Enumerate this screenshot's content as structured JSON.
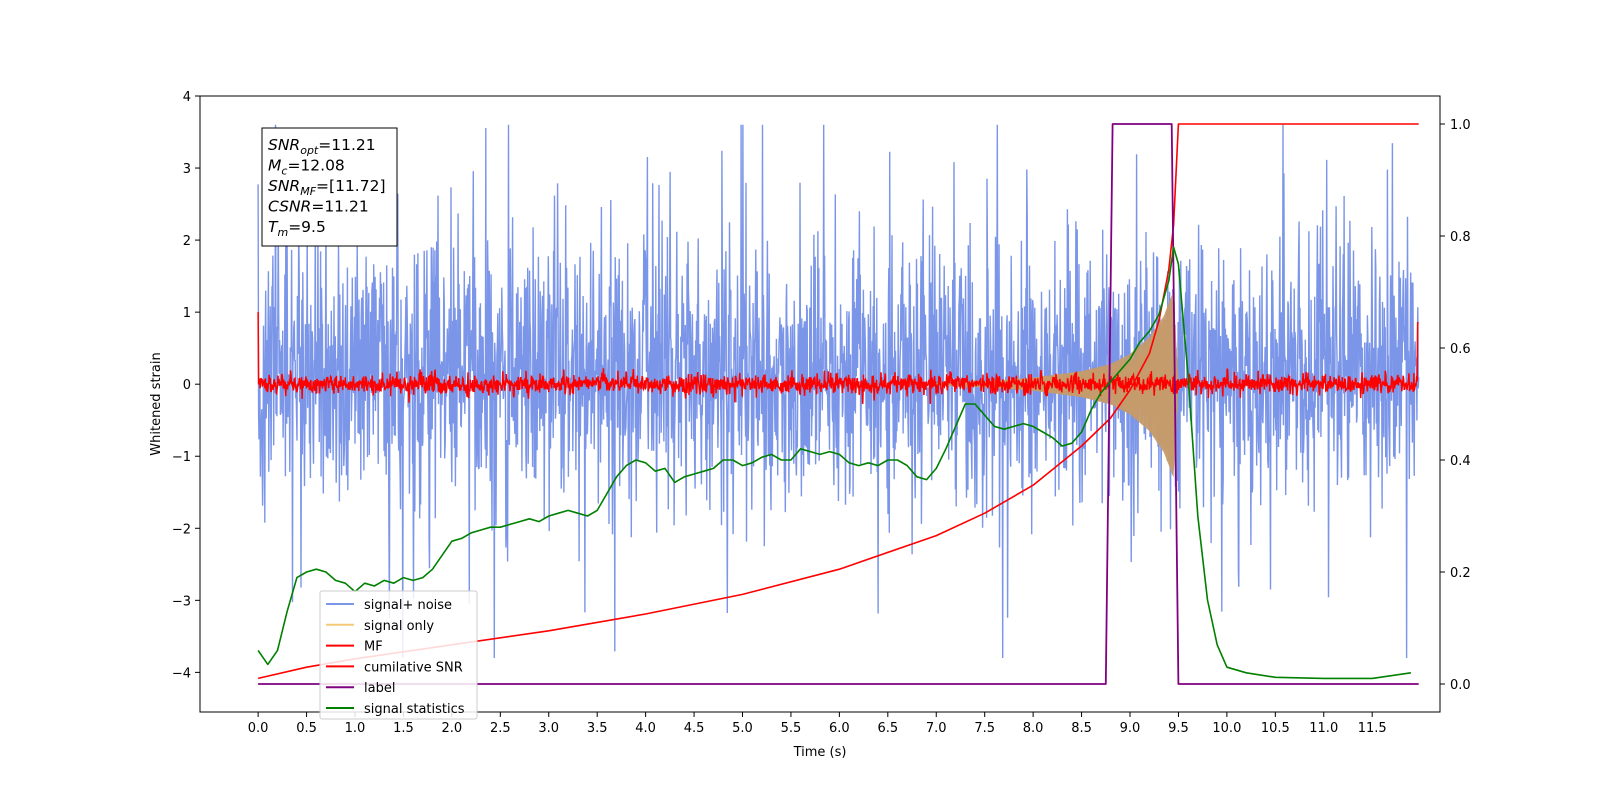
{
  "chart_data": {
    "type": "line",
    "xlabel": "Time (s)",
    "ylabel": "Whitened strain",
    "xlim": [
      -0.6,
      12.2
    ],
    "ylim": [
      -4.55,
      4.0
    ],
    "y2lim": [
      -0.05,
      1.05
    ],
    "x_tick_labels": [
      "0.0",
      "0.5",
      "1.0",
      "1.5",
      "2.0",
      "2.5",
      "3.0",
      "3.5",
      "4.0",
      "4.5",
      "5.0",
      "5.5",
      "6.0",
      "6.5",
      "7.0",
      "7.5",
      "8.0",
      "8.5",
      "9.0",
      "9.5",
      "10.0",
      "10.5",
      "11.0",
      "11.5"
    ],
    "y_tick_labels": [
      "4",
      "3",
      "2",
      "1",
      "0",
      "−1",
      "−2",
      "−3",
      "−4"
    ],
    "y2_tick_labels": [
      "1.0",
      "0.8",
      "0.6",
      "0.4",
      "0.2",
      "0.0"
    ],
    "annotation": [
      {
        "name": "SNR",
        "sub": "opt",
        "value": "=11.21"
      },
      {
        "name": "M",
        "sub": "c",
        "value": "=12.08"
      },
      {
        "name": "SNR",
        "sub": "MF",
        "value": "=[11.72]"
      },
      {
        "name": "CSNR",
        "sub": "",
        "value": "=11.21"
      },
      {
        "name": "T",
        "sub": "m",
        "value": "=9.5"
      }
    ],
    "legend_position": "lower-left",
    "series": [
      {
        "name": "signal+ noise",
        "color": "#7b96e8",
        "axis": "left",
        "description": "whitened noise plus signal, noise band roughly -1.5 to 1.8 with spikes to about 3.6 and -3.8",
        "x_range": [
          0.0,
          11.98
        ],
        "band": [
          -1.5,
          1.8
        ],
        "extremes": [
          -3.8,
          3.6
        ]
      },
      {
        "name": "signal only",
        "color": "#f5c87a",
        "axis": "left",
        "envelope": {
          "x": [
            7.0,
            7.5,
            8.0,
            8.5,
            8.8,
            9.0,
            9.2,
            9.35,
            9.45,
            9.5
          ],
          "amp": [
            0.01,
            0.04,
            0.09,
            0.18,
            0.28,
            0.42,
            0.65,
            0.95,
            1.3,
            0.0
          ]
        }
      },
      {
        "name": "MF",
        "color": "#ff0000",
        "axis": "left",
        "description": "matched filter output, noise around 0 with amplitude about 0.15 and peaks about 0.3",
        "x_range": [
          0.0,
          11.98
        ]
      },
      {
        "name": "cumilative SNR",
        "color": "#ff0000",
        "axis": "right",
        "x": [
          0.0,
          0.5,
          1.0,
          2.0,
          3.0,
          4.0,
          5.0,
          6.0,
          7.0,
          7.5,
          8.0,
          8.5,
          8.8,
          9.0,
          9.2,
          9.3,
          9.4,
          9.45,
          9.5,
          11.98
        ],
        "y": [
          0.01,
          0.03,
          0.045,
          0.07,
          0.095,
          0.125,
          0.16,
          0.205,
          0.265,
          0.305,
          0.355,
          0.425,
          0.475,
          0.525,
          0.59,
          0.65,
          0.74,
          0.82,
          1.0,
          1.0
        ]
      },
      {
        "name": "label",
        "color": "#800080",
        "axis": "right",
        "x": [
          0.0,
          8.75,
          8.82,
          9.43,
          9.5,
          11.98
        ],
        "y": [
          0.0,
          0.0,
          1.0,
          1.0,
          0.0,
          0.0
        ]
      },
      {
        "name": "signal statistics",
        "color": "#008000",
        "axis": "right",
        "x": [
          0.0,
          0.1,
          0.2,
          0.3,
          0.4,
          0.5,
          0.6,
          0.7,
          0.8,
          0.9,
          1.0,
          1.1,
          1.2,
          1.3,
          1.4,
          1.5,
          1.6,
          1.7,
          1.8,
          1.9,
          2.0,
          2.1,
          2.2,
          2.3,
          2.4,
          2.5,
          2.6,
          2.7,
          2.8,
          2.9,
          3.0,
          3.1,
          3.2,
          3.3,
          3.4,
          3.5,
          3.6,
          3.7,
          3.8,
          3.9,
          4.0,
          4.1,
          4.2,
          4.3,
          4.4,
          4.5,
          4.6,
          4.7,
          4.8,
          4.9,
          5.0,
          5.1,
          5.2,
          5.3,
          5.4,
          5.5,
          5.6,
          5.7,
          5.8,
          5.9,
          6.0,
          6.1,
          6.2,
          6.3,
          6.4,
          6.5,
          6.6,
          6.7,
          6.8,
          6.9,
          7.0,
          7.1,
          7.2,
          7.3,
          7.4,
          7.5,
          7.6,
          7.7,
          7.8,
          7.9,
          8.0,
          8.1,
          8.2,
          8.3,
          8.4,
          8.5,
          8.6,
          8.7,
          8.8,
          8.9,
          9.0,
          9.1,
          9.2,
          9.3,
          9.4,
          9.45,
          9.5,
          9.6,
          9.7,
          9.8,
          9.9,
          10.0,
          10.2,
          10.5,
          11.0,
          11.5,
          11.9
        ],
        "y": [
          0.06,
          0.035,
          0.06,
          0.13,
          0.19,
          0.2,
          0.205,
          0.2,
          0.185,
          0.18,
          0.165,
          0.18,
          0.175,
          0.185,
          0.18,
          0.19,
          0.185,
          0.19,
          0.205,
          0.23,
          0.255,
          0.26,
          0.27,
          0.275,
          0.28,
          0.28,
          0.285,
          0.29,
          0.295,
          0.29,
          0.3,
          0.305,
          0.31,
          0.305,
          0.3,
          0.31,
          0.34,
          0.37,
          0.39,
          0.4,
          0.395,
          0.38,
          0.385,
          0.36,
          0.37,
          0.375,
          0.38,
          0.385,
          0.4,
          0.4,
          0.39,
          0.395,
          0.405,
          0.41,
          0.4,
          0.4,
          0.42,
          0.415,
          0.41,
          0.415,
          0.41,
          0.395,
          0.39,
          0.395,
          0.39,
          0.4,
          0.4,
          0.39,
          0.37,
          0.365,
          0.385,
          0.42,
          0.46,
          0.5,
          0.5,
          0.48,
          0.46,
          0.455,
          0.46,
          0.465,
          0.46,
          0.45,
          0.44,
          0.425,
          0.43,
          0.45,
          0.49,
          0.52,
          0.54,
          0.56,
          0.58,
          0.61,
          0.63,
          0.66,
          0.72,
          0.78,
          0.75,
          0.55,
          0.3,
          0.15,
          0.07,
          0.03,
          0.02,
          0.012,
          0.01,
          0.01,
          0.02
        ]
      }
    ]
  }
}
